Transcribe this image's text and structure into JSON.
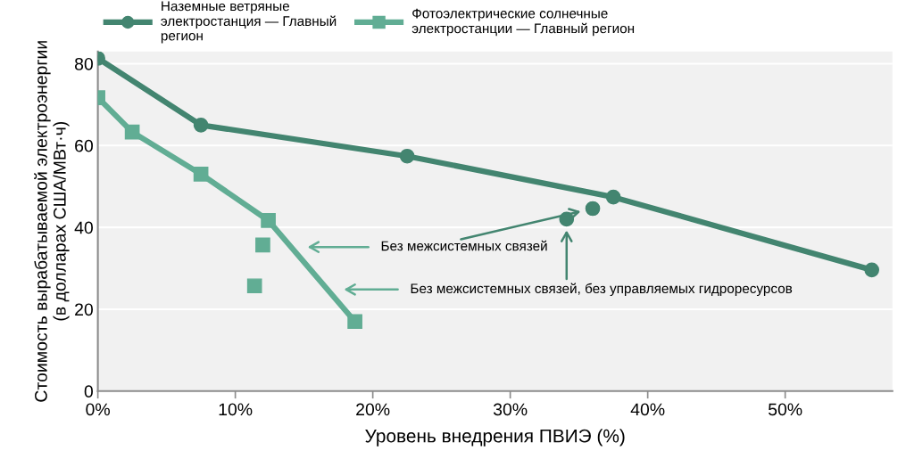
{
  "chart_data": {
    "type": "line",
    "xlabel": "Уровень внедрения ПВИЭ (%)",
    "ylabel": "Стоимость вырабатываемой электроэнергии\n(в долларах США/МВт·ч)",
    "xlim": [
      0,
      57.8
    ],
    "ylim": [
      0,
      83
    ],
    "xticks": [
      {
        "value": 0,
        "label": "0%"
      },
      {
        "value": 10,
        "label": "10%"
      },
      {
        "value": 20,
        "label": "20%"
      },
      {
        "value": 30,
        "label": "30%"
      },
      {
        "value": 40,
        "label": "40%"
      },
      {
        "value": 50,
        "label": "50%"
      }
    ],
    "yticks": [
      0,
      20,
      40,
      60,
      80
    ],
    "grid": "y",
    "legend": "top left",
    "series": [
      {
        "name": "Наземные ветряные электростанция — Главный регион",
        "marker": "circle",
        "color": "#438570",
        "x": [
          0,
          7.5,
          22.5,
          37.5,
          56.3
        ],
        "values": [
          81.3,
          65.0,
          57.4,
          47.4,
          29.6
        ]
      },
      {
        "name": "Фотоэлектрические солнечные электростанции — Главный регион",
        "marker": "square",
        "color": "#61ad94",
        "x": [
          0,
          2.5,
          7.5,
          12.4,
          18.7
        ],
        "values": [
          71.7,
          63.3,
          53.0,
          41.7,
          17.0
        ]
      },
      {
        "type": "scatter",
        "marker": "circle",
        "color": "#438570",
        "x": [
          34.1,
          36.0
        ],
        "values": [
          42.0,
          44.6
        ]
      },
      {
        "type": "scatter",
        "marker": "square",
        "color": "#61ad94",
        "x": [
          12.0,
          11.4
        ],
        "values": [
          35.7,
          25.7
        ]
      }
    ],
    "annotations": [
      "Без межсистемных связей",
      "Без межсистемных связей, без управляемых гидроресурсов"
    ]
  }
}
